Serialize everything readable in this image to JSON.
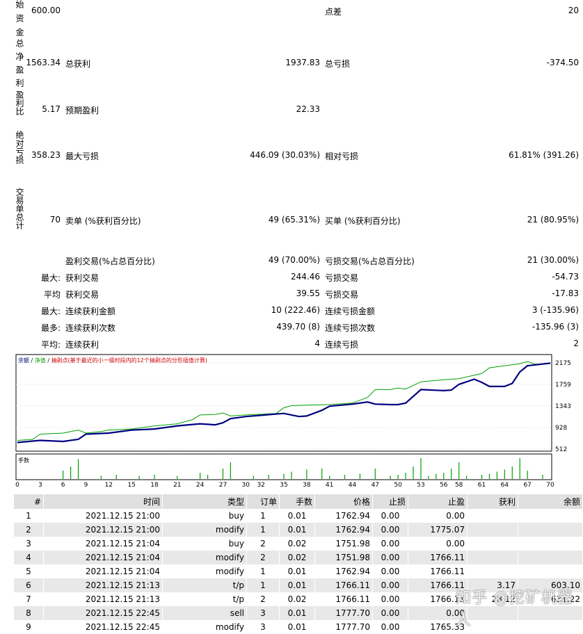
{
  "summary": {
    "initial_capital_label": "始资金",
    "initial_capital": "600.00",
    "spread_label": "点差",
    "spread": "20",
    "net_profit_label": "总净盈利",
    "net_profit": "1563.34",
    "gross_profit_label": "总获利",
    "gross_profit": "1937.83",
    "gross_loss_label": "总亏损",
    "gross_loss": "-374.50",
    "profit_factor_label": "盈利比",
    "profit_factor": "5.17",
    "expected_payoff_label": "预期盈利",
    "expected_payoff": "22.33",
    "abs_drawdown_label": "绝对亏损",
    "abs_drawdown": "358.23",
    "max_drawdown_label": "最大亏损",
    "max_drawdown": "446.09 (30.03%)",
    "rel_drawdown_label": "相对亏损",
    "rel_drawdown": "61.81% (391.26)",
    "total_trades_label": "交易单总计",
    "total_trades": "70",
    "short_label": "卖单 (%获利百分比)",
    "short_value": "49 (65.31%)",
    "long_label": "买单 (%获利百分比)",
    "long_value": "21 (80.95%)",
    "profit_trades_label": "盈利交易(%占总百分比)",
    "profit_trades": "49 (70.00%)",
    "loss_trades_label": "亏损交易(%占总百分比)",
    "loss_trades": "21 (30.00%)",
    "max_prefix": "最大:",
    "largest_profit_label": "获利交易",
    "largest_profit": "244.46",
    "largest_loss_label": "亏损交易",
    "largest_loss": "-54.73",
    "avg_prefix": "平均",
    "avg_profit_label": "获利交易",
    "avg_profit": "39.55",
    "avg_loss_label": "亏损交易",
    "avg_loss": "-17.83",
    "max2_prefix": "最大:",
    "max_consec_win_amt_label": "连续获利金额",
    "max_consec_win_amt": "10 (222.46)",
    "max_consec_loss_amt_label": "连续亏损金额",
    "max_consec_loss_amt": "3 (-135.96)",
    "most_prefix": "最多:",
    "max_consec_win_cnt_label": "连续获利次数",
    "max_consec_win_cnt": "439.70 (8)",
    "max_consec_loss_cnt_label": "连续亏损次数",
    "max_consec_loss_cnt": "-135.96 (3)",
    "avg2_prefix": "平均:",
    "avg_consec_win_label": "连续获利",
    "avg_consec_win": "4",
    "avg_consec_loss_label": "连续亏损",
    "avg_consec_loss": "2"
  },
  "chart_data": {
    "type": "line",
    "legend": "余额 / 净值 / 抽剥点(基于最近的小一级时段内的12个抽剥点的分形插值计算)",
    "legend_balance": "余额",
    "legend_equity": "净值",
    "legend_rest": "抽剥点(基于最近的小一级时段内的12个抽剥点的分形插值计算)",
    "y_ticks": [
      "2175",
      "1759",
      "1343",
      "928",
      "512"
    ],
    "ylim": [
      512,
      2175
    ],
    "x_ticks": [
      "0",
      "3",
      "6",
      "9",
      "12",
      "15",
      "18",
      "21",
      "24",
      "27",
      "30",
      "32",
      "35",
      "38",
      "41",
      "44",
      "47",
      "50",
      "53",
      "56",
      "58",
      "61",
      "64",
      "67",
      "70"
    ],
    "volume_label": "手数",
    "series": [
      {
        "name": "余额",
        "color": "#000080",
        "x": [
          0,
          3,
          6,
          8,
          9,
          12,
          15,
          18,
          21,
          24,
          26,
          27,
          28,
          30,
          35,
          36,
          37,
          38,
          40,
          41,
          44,
          46,
          47,
          49,
          50,
          51,
          53,
          56,
          57,
          58,
          60,
          61,
          62,
          64,
          65,
          66,
          67,
          70
        ],
        "y": [
          640,
          680,
          660,
          700,
          800,
          820,
          880,
          900,
          960,
          1000,
          980,
          1020,
          1100,
          1140,
          1200,
          1170,
          1140,
          1150,
          1260,
          1340,
          1380,
          1420,
          1380,
          1370,
          1370,
          1400,
          1660,
          1640,
          1650,
          1760,
          1860,
          1800,
          1720,
          1720,
          1780,
          2000,
          2120,
          2170
        ]
      },
      {
        "name": "净值",
        "color": "#00a000",
        "x": [
          0,
          2,
          3,
          6,
          8,
          9,
          11,
          12,
          15,
          18,
          21,
          23,
          24,
          26,
          27,
          28,
          30,
          34,
          35,
          36,
          38,
          41,
          44,
          46,
          47,
          49,
          50,
          51,
          53,
          56,
          57,
          58,
          61,
          62,
          64,
          66,
          67,
          68,
          70
        ],
        "y": [
          680,
          700,
          800,
          820,
          880,
          820,
          850,
          880,
          900,
          960,
          1000,
          1080,
          1170,
          1180,
          1210,
          1150,
          1170,
          1200,
          1310,
          1350,
          1360,
          1370,
          1400,
          1510,
          1660,
          1660,
          1690,
          1670,
          1810,
          1850,
          1860,
          1870,
          1970,
          2080,
          2120,
          2160,
          2200,
          2150,
          2160
        ]
      }
    ],
    "volume_bars": [
      {
        "x": 6,
        "v": 0.4
      },
      {
        "x": 7,
        "v": 0.6
      },
      {
        "x": 8,
        "v": 0.95
      },
      {
        "x": 11,
        "v": 0.15
      },
      {
        "x": 13,
        "v": 0.2
      },
      {
        "x": 16,
        "v": 0.15
      },
      {
        "x": 18,
        "v": 0.2
      },
      {
        "x": 21,
        "v": 0.15
      },
      {
        "x": 24,
        "v": 0.3
      },
      {
        "x": 25,
        "v": 0.2
      },
      {
        "x": 27,
        "v": 0.5
      },
      {
        "x": 28,
        "v": 0.8
      },
      {
        "x": 31,
        "v": 0.15
      },
      {
        "x": 33,
        "v": 0.2
      },
      {
        "x": 35,
        "v": 0.25
      },
      {
        "x": 36,
        "v": 0.35
      },
      {
        "x": 38,
        "v": 0.45
      },
      {
        "x": 40,
        "v": 0.5
      },
      {
        "x": 41,
        "v": 0.15
      },
      {
        "x": 43,
        "v": 0.2
      },
      {
        "x": 45,
        "v": 0.25
      },
      {
        "x": 47,
        "v": 0.5
      },
      {
        "x": 49,
        "v": 0.15
      },
      {
        "x": 50,
        "v": 0.2
      },
      {
        "x": 51,
        "v": 0.3
      },
      {
        "x": 52,
        "v": 0.6
      },
      {
        "x": 53,
        "v": 1.0
      },
      {
        "x": 54,
        "v": 0.15
      },
      {
        "x": 55,
        "v": 0.25
      },
      {
        "x": 56,
        "v": 0.3
      },
      {
        "x": 57,
        "v": 0.5
      },
      {
        "x": 58,
        "v": 0.8
      },
      {
        "x": 59,
        "v": 0.15
      },
      {
        "x": 61,
        "v": 0.2
      },
      {
        "x": 62,
        "v": 0.25
      },
      {
        "x": 63,
        "v": 0.35
      },
      {
        "x": 64,
        "v": 0.45
      },
      {
        "x": 65,
        "v": 0.6
      },
      {
        "x": 66,
        "v": 1.0
      },
      {
        "x": 67,
        "v": 0.4
      },
      {
        "x": 69,
        "v": 0.2
      }
    ]
  },
  "table": {
    "headers": [
      "#",
      "时间",
      "类型",
      "订单",
      "手数",
      "价格",
      "止损",
      "止盈",
      "获利",
      "余额"
    ],
    "rows": [
      [
        "1",
        "2021.12.15 21:00",
        "buy",
        "1",
        "0.01",
        "1762.94",
        "0.00",
        "0.00",
        "",
        ""
      ],
      [
        "2",
        "2021.12.15 21:00",
        "modify",
        "1",
        "0.01",
        "1762.94",
        "0.00",
        "1775.07",
        "",
        ""
      ],
      [
        "3",
        "2021.12.15 21:04",
        "buy",
        "2",
        "0.02",
        "1751.98",
        "0.00",
        "0.00",
        "",
        ""
      ],
      [
        "4",
        "2021.12.15 21:04",
        "modify",
        "2",
        "0.02",
        "1751.98",
        "0.00",
        "1766.11",
        "",
        ""
      ],
      [
        "5",
        "2021.12.15 21:04",
        "modify",
        "1",
        "0.01",
        "1762.94",
        "0.00",
        "1766.11",
        "",
        ""
      ],
      [
        "6",
        "2021.12.15 21:13",
        "t/p",
        "1",
        "0.01",
        "1766.11",
        "0.00",
        "1766.11",
        "3.17",
        "603.10"
      ],
      [
        "7",
        "2021.12.15 21:13",
        "t/p",
        "2",
        "0.02",
        "1766.11",
        "0.00",
        "1766.11",
        "28.12",
        "631.22"
      ],
      [
        "8",
        "2021.12.15 22:45",
        "sell",
        "3",
        "0.01",
        "1777.70",
        "0.00",
        "0.00",
        "",
        ""
      ],
      [
        "9",
        "2021.12.15 22:45",
        "modify",
        "3",
        "0.01",
        "1777.70",
        "0.00",
        "1765.33",
        "",
        ""
      ]
    ]
  },
  "watermark": "知乎 @挖矿机器人"
}
